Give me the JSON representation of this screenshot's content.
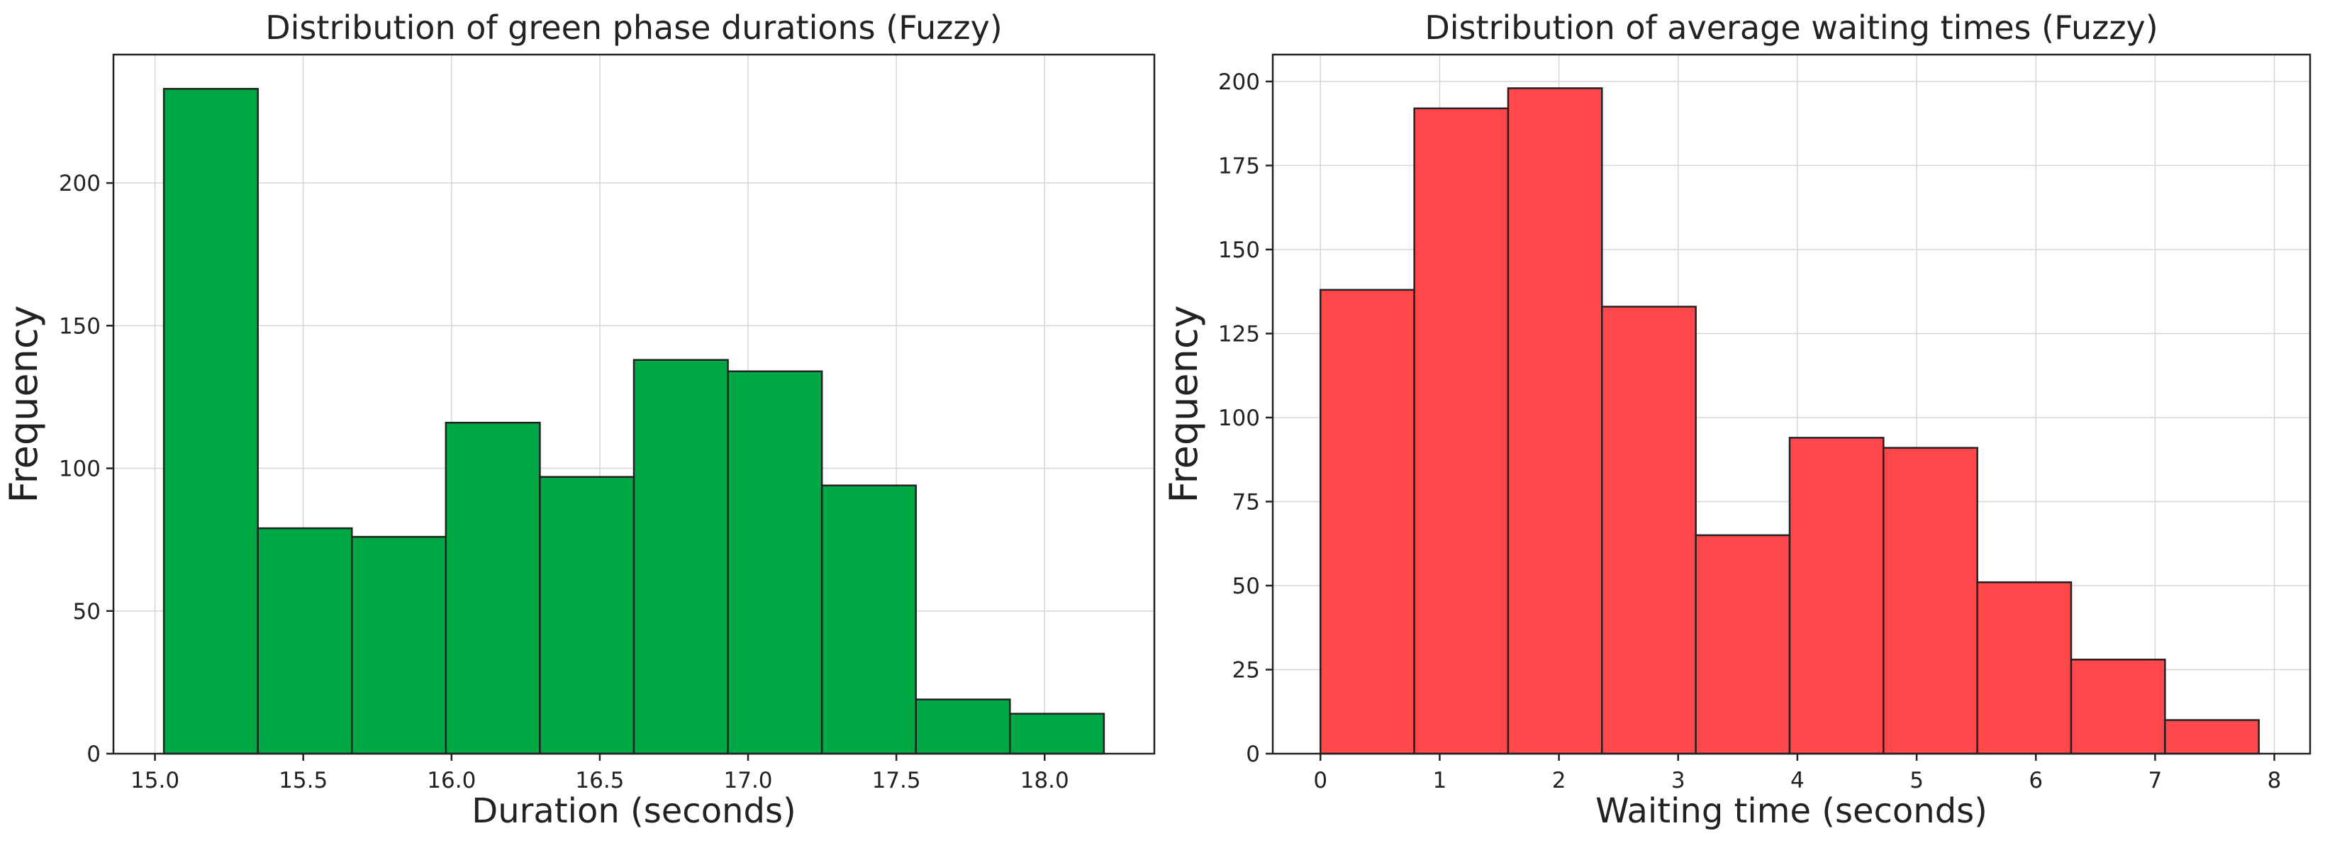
{
  "chart_data": [
    {
      "type": "bar",
      "title": "Distribution of green phase durations (Fuzzy)",
      "xlabel": "Duration (seconds)",
      "ylabel": "Frequency",
      "bin_edges": [
        15.03,
        15.347,
        15.664,
        15.981,
        16.298,
        16.615,
        16.932,
        17.249,
        17.566,
        17.883,
        18.2
      ],
      "values": [
        233,
        79,
        76,
        116,
        97,
        138,
        134,
        94,
        19,
        14
      ],
      "xlim": [
        14.86,
        18.37
      ],
      "ylim": [
        0,
        245
      ],
      "xticks": [
        15.0,
        15.5,
        16.0,
        16.5,
        17.0,
        17.5,
        18.0
      ],
      "xtick_labels": [
        "15.0",
        "15.5",
        "16.0",
        "16.5",
        "17.0",
        "17.5",
        "18.0"
      ],
      "yticks": [
        0,
        50,
        100,
        150,
        200
      ],
      "ytick_labels": [
        "0",
        "50",
        "100",
        "150",
        "200"
      ],
      "grid": true,
      "color": "#00a843"
    },
    {
      "type": "bar",
      "title": "Distribution of average waiting times (Fuzzy)",
      "xlabel": "Waiting time (seconds)",
      "ylabel": "Frequency",
      "bin_edges": [
        0,
        0.787,
        1.574,
        2.361,
        3.148,
        3.935,
        4.722,
        5.509,
        6.296,
        7.083,
        7.87
      ],
      "values": [
        138,
        192,
        198,
        133,
        65,
        94,
        91,
        51,
        28,
        10
      ],
      "xlim": [
        -0.4,
        8.3
      ],
      "ylim": [
        0,
        208
      ],
      "xticks": [
        0,
        1,
        2,
        3,
        4,
        5,
        6,
        7,
        8
      ],
      "xtick_labels": [
        "0",
        "1",
        "2",
        "3",
        "4",
        "5",
        "6",
        "7",
        "8"
      ],
      "yticks": [
        0,
        25,
        50,
        75,
        100,
        125,
        150,
        175,
        200
      ],
      "ytick_labels": [
        "0",
        "25",
        "50",
        "75",
        "100",
        "125",
        "150",
        "175",
        "200"
      ],
      "grid": true,
      "color": "#ff474c"
    }
  ]
}
